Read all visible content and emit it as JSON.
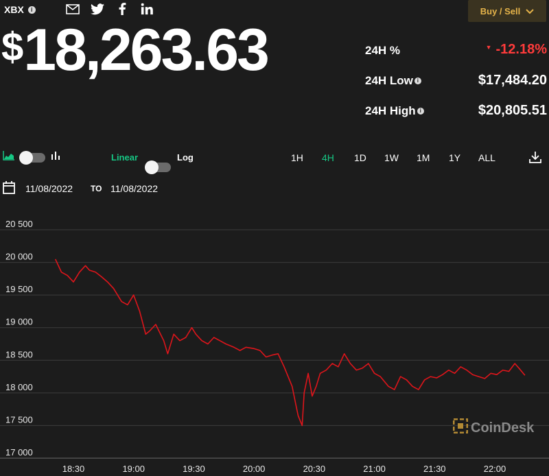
{
  "header": {
    "ticker": "XBX",
    "info_icon": "i",
    "social_icons": [
      "mail-icon",
      "twitter-icon",
      "facebook-icon",
      "linkedin-icon"
    ],
    "buy_sell_label": "Buy / Sell",
    "price_symbol": "$",
    "price": "18,263.63"
  },
  "stats": {
    "pct_label": "24H %",
    "pct_value": "-12.18%",
    "low_label": "24H Low",
    "low_value": "$17,484.20",
    "high_label": "24H High",
    "high_value": "$20,805.51"
  },
  "toolbar": {
    "linear_label": "Linear",
    "log_label": "Log",
    "ranges": [
      "1H",
      "4H",
      "1D",
      "1W",
      "1M",
      "1Y",
      "ALL"
    ],
    "active_range": "4H"
  },
  "dates": {
    "from": "11/08/2022",
    "to_label": "TO",
    "to": "11/08/2022"
  },
  "colors": {
    "accent_green": "#16c784",
    "negative_red": "#ff3b3b",
    "line_red": "#e0151b",
    "buy_sell_text": "#e6b44a"
  },
  "watermark": "CoinDesk",
  "chart_data": {
    "type": "line",
    "title": "",
    "xlabel": "",
    "ylabel": "",
    "ylim": [
      17000,
      20500
    ],
    "yticks": [
      "20 500",
      "20 000",
      "19 500",
      "19 000",
      "18 500",
      "18 000",
      "17 500",
      "17 000"
    ],
    "ytick_values": [
      20500,
      20000,
      19500,
      19000,
      18500,
      18000,
      17500,
      17000
    ],
    "xticks": [
      "18:30",
      "19:00",
      "19:30",
      "20:00",
      "20:30",
      "21:00",
      "21:30",
      "22:00"
    ],
    "xtick_minutes": [
      1110,
      1140,
      1170,
      1200,
      1230,
      1260,
      1290,
      1320
    ],
    "x_minutes": [
      1101,
      1104,
      1107,
      1110,
      1113,
      1116,
      1118,
      1121,
      1124,
      1127,
      1130,
      1134,
      1137,
      1140,
      1143,
      1146,
      1148,
      1151,
      1155,
      1157,
      1160,
      1163,
      1166,
      1169,
      1171,
      1174,
      1177,
      1180,
      1183,
      1186,
      1190,
      1193,
      1196,
      1200,
      1203,
      1206,
      1209,
      1212,
      1215,
      1219,
      1221,
      1222,
      1224,
      1225,
      1227,
      1229,
      1231,
      1233,
      1236,
      1239,
      1242,
      1245,
      1248,
      1251,
      1254,
      1257,
      1260,
      1263,
      1267,
      1270,
      1273,
      1276,
      1279,
      1282,
      1285,
      1288,
      1291,
      1294,
      1297,
      1300,
      1303,
      1306,
      1309,
      1312,
      1315,
      1318,
      1321,
      1324,
      1327,
      1330,
      1332,
      1335
    ],
    "series": [
      {
        "values": [
          20050,
          19850,
          19800,
          19700,
          19850,
          19950,
          19880,
          19850,
          19780,
          19700,
          19600,
          19400,
          19350,
          19500,
          19250,
          18900,
          18950,
          19050,
          18800,
          18600,
          18900,
          18800,
          18850,
          19000,
          18900,
          18800,
          18750,
          18850,
          18800,
          18750,
          18700,
          18650,
          18700,
          18680,
          18650,
          18550,
          18580,
          18600,
          18400,
          18100,
          17800,
          17650,
          17500,
          18000,
          18300,
          17950,
          18100,
          18300,
          18350,
          18450,
          18400,
          18600,
          18450,
          18350,
          18380,
          18450,
          18300,
          18250,
          18100,
          18050,
          18250,
          18200,
          18100,
          18050,
          18200,
          18250,
          18230,
          18280,
          18350,
          18300,
          18400,
          18350,
          18280,
          18250,
          18220,
          18300,
          18280,
          18350,
          18330,
          18450,
          18380,
          18270
        ]
      }
    ]
  }
}
